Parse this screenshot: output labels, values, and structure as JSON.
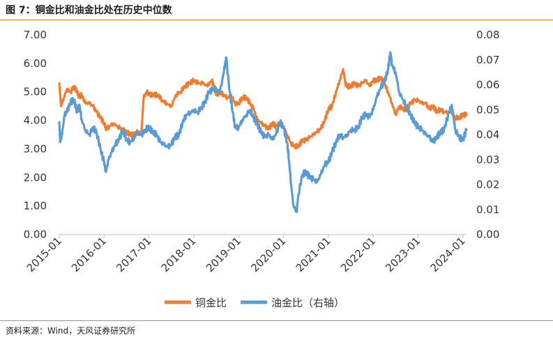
{
  "figure": {
    "title": "图 7：铜金比和油金比处在历史中位数",
    "source": "资料来源：Wind，天风证券研究所"
  },
  "chart_data": {
    "type": "line",
    "title": "铜金比和油金比处在历史中位数",
    "x_tick_labels": [
      "2015-01",
      "2016-01",
      "2017-01",
      "2018-01",
      "2019-01",
      "2020-01",
      "2021-01",
      "2022-01",
      "2023-01",
      "2024-01"
    ],
    "x_range": [
      2015.0,
      2024.08
    ],
    "y_left": {
      "range": [
        0,
        7
      ],
      "tick_labels": [
        "0.00",
        "1.00",
        "2.00",
        "3.00",
        "4.00",
        "5.00",
        "6.00",
        "7.00"
      ]
    },
    "y_right": {
      "range": [
        0,
        0.08
      ],
      "tick_labels": [
        "0.00",
        "0.01",
        "0.02",
        "0.03",
        "0.04",
        "0.05",
        "0.06",
        "0.07",
        "0.08"
      ]
    },
    "legend_position": "bottom-center",
    "series": [
      {
        "name": "铜金比",
        "axis": "left",
        "color": "#ED7D31",
        "points": [
          [
            2015.0,
            5.3
          ],
          [
            2015.04,
            4.5
          ],
          [
            2015.1,
            4.8
          ],
          [
            2015.17,
            5.1
          ],
          [
            2015.25,
            5.0
          ],
          [
            2015.33,
            5.2
          ],
          [
            2015.4,
            5.0
          ],
          [
            2015.45,
            4.8
          ],
          [
            2015.5,
            4.9
          ],
          [
            2015.58,
            4.6
          ],
          [
            2015.67,
            4.6
          ],
          [
            2015.75,
            4.5
          ],
          [
            2015.83,
            4.3
          ],
          [
            2015.92,
            4.1
          ],
          [
            2016.0,
            3.9
          ],
          [
            2016.05,
            3.7
          ],
          [
            2016.12,
            3.8
          ],
          [
            2016.2,
            3.9
          ],
          [
            2016.3,
            3.8
          ],
          [
            2016.4,
            3.7
          ],
          [
            2016.5,
            3.6
          ],
          [
            2016.58,
            3.5
          ],
          [
            2016.67,
            3.5
          ],
          [
            2016.75,
            3.6
          ],
          [
            2016.83,
            3.5
          ],
          [
            2016.88,
            4.8
          ],
          [
            2016.95,
            5.0
          ],
          [
            2017.0,
            4.9
          ],
          [
            2017.1,
            4.9
          ],
          [
            2017.2,
            4.9
          ],
          [
            2017.3,
            4.7
          ],
          [
            2017.4,
            4.6
          ],
          [
            2017.5,
            4.5
          ],
          [
            2017.6,
            4.9
          ],
          [
            2017.7,
            5.0
          ],
          [
            2017.8,
            5.2
          ],
          [
            2017.9,
            5.3
          ],
          [
            2018.0,
            5.4
          ],
          [
            2018.1,
            5.3
          ],
          [
            2018.2,
            5.3
          ],
          [
            2018.3,
            5.2
          ],
          [
            2018.4,
            5.4
          ],
          [
            2018.45,
            5.2
          ],
          [
            2018.5,
            4.9
          ],
          [
            2018.58,
            5.0
          ],
          [
            2018.67,
            4.9
          ],
          [
            2018.75,
            4.8
          ],
          [
            2018.83,
            4.9
          ],
          [
            2018.92,
            4.6
          ],
          [
            2019.0,
            4.6
          ],
          [
            2019.08,
            4.8
          ],
          [
            2019.17,
            4.8
          ],
          [
            2019.25,
            4.6
          ],
          [
            2019.33,
            4.4
          ],
          [
            2019.42,
            4.0
          ],
          [
            2019.5,
            3.9
          ],
          [
            2019.58,
            3.8
          ],
          [
            2019.67,
            3.7
          ],
          [
            2019.75,
            3.9
          ],
          [
            2019.83,
            3.8
          ],
          [
            2019.92,
            3.9
          ],
          [
            2020.0,
            3.8
          ],
          [
            2020.08,
            3.5
          ],
          [
            2020.17,
            3.2
          ],
          [
            2020.25,
            3.1
          ],
          [
            2020.33,
            3.1
          ],
          [
            2020.42,
            3.3
          ],
          [
            2020.5,
            3.3
          ],
          [
            2020.58,
            3.4
          ],
          [
            2020.67,
            3.5
          ],
          [
            2020.75,
            3.6
          ],
          [
            2020.83,
            3.7
          ],
          [
            2020.92,
            4.0
          ],
          [
            2021.0,
            4.4
          ],
          [
            2021.08,
            4.5
          ],
          [
            2021.17,
            5.0
          ],
          [
            2021.25,
            5.4
          ],
          [
            2021.33,
            5.8
          ],
          [
            2021.38,
            5.3
          ],
          [
            2021.42,
            5.2
          ],
          [
            2021.5,
            5.2
          ],
          [
            2021.58,
            5.3
          ],
          [
            2021.67,
            5.2
          ],
          [
            2021.75,
            5.3
          ],
          [
            2021.83,
            5.4
          ],
          [
            2021.92,
            5.2
          ],
          [
            2022.0,
            5.4
          ],
          [
            2022.08,
            5.4
          ],
          [
            2022.17,
            5.5
          ],
          [
            2022.25,
            5.3
          ],
          [
            2022.33,
            5.0
          ],
          [
            2022.42,
            4.6
          ],
          [
            2022.5,
            4.2
          ],
          [
            2022.58,
            4.5
          ],
          [
            2022.67,
            4.4
          ],
          [
            2022.75,
            4.4
          ],
          [
            2022.83,
            4.6
          ],
          [
            2022.92,
            4.7
          ],
          [
            2023.0,
            4.7
          ],
          [
            2023.08,
            4.6
          ],
          [
            2023.17,
            4.6
          ],
          [
            2023.25,
            4.4
          ],
          [
            2023.33,
            4.5
          ],
          [
            2023.42,
            4.3
          ],
          [
            2023.5,
            4.4
          ],
          [
            2023.58,
            4.3
          ],
          [
            2023.67,
            4.3
          ],
          [
            2023.75,
            4.3
          ],
          [
            2023.83,
            4.1
          ],
          [
            2023.92,
            4.1
          ],
          [
            2024.0,
            4.2
          ],
          [
            2024.08,
            4.2
          ]
        ]
      },
      {
        "name": "油金比（右轴）",
        "axis": "right",
        "color": "#5B9BD5",
        "points": [
          [
            2015.0,
            0.045
          ],
          [
            2015.02,
            0.037
          ],
          [
            2015.06,
            0.04
          ],
          [
            2015.12,
            0.048
          ],
          [
            2015.17,
            0.049
          ],
          [
            2015.25,
            0.053
          ],
          [
            2015.33,
            0.054
          ],
          [
            2015.4,
            0.049
          ],
          [
            2015.45,
            0.052
          ],
          [
            2015.5,
            0.046
          ],
          [
            2015.58,
            0.042
          ],
          [
            2015.67,
            0.04
          ],
          [
            2015.75,
            0.043
          ],
          [
            2015.83,
            0.041
          ],
          [
            2015.92,
            0.034
          ],
          [
            2016.0,
            0.029
          ],
          [
            2016.04,
            0.025
          ],
          [
            2016.1,
            0.03
          ],
          [
            2016.17,
            0.033
          ],
          [
            2016.25,
            0.036
          ],
          [
            2016.33,
            0.038
          ],
          [
            2016.42,
            0.042
          ],
          [
            2016.5,
            0.038
          ],
          [
            2016.58,
            0.037
          ],
          [
            2016.67,
            0.039
          ],
          [
            2016.75,
            0.041
          ],
          [
            2016.83,
            0.04
          ],
          [
            2016.92,
            0.042
          ],
          [
            2017.0,
            0.043
          ],
          [
            2017.08,
            0.041
          ],
          [
            2017.17,
            0.04
          ],
          [
            2017.25,
            0.037
          ],
          [
            2017.33,
            0.036
          ],
          [
            2017.42,
            0.035
          ],
          [
            2017.5,
            0.036
          ],
          [
            2017.58,
            0.039
          ],
          [
            2017.67,
            0.04
          ],
          [
            2017.75,
            0.045
          ],
          [
            2017.83,
            0.048
          ],
          [
            2017.92,
            0.049
          ],
          [
            2018.0,
            0.05
          ],
          [
            2018.08,
            0.049
          ],
          [
            2018.17,
            0.051
          ],
          [
            2018.25,
            0.053
          ],
          [
            2018.33,
            0.057
          ],
          [
            2018.42,
            0.058
          ],
          [
            2018.5,
            0.058
          ],
          [
            2018.58,
            0.057
          ],
          [
            2018.67,
            0.065
          ],
          [
            2018.72,
            0.071
          ],
          [
            2018.8,
            0.057
          ],
          [
            2018.87,
            0.049
          ],
          [
            2018.92,
            0.043
          ],
          [
            2019.0,
            0.043
          ],
          [
            2019.08,
            0.046
          ],
          [
            2019.17,
            0.048
          ],
          [
            2019.25,
            0.05
          ],
          [
            2019.33,
            0.047
          ],
          [
            2019.42,
            0.044
          ],
          [
            2019.5,
            0.041
          ],
          [
            2019.58,
            0.039
          ],
          [
            2019.67,
            0.04
          ],
          [
            2019.75,
            0.038
          ],
          [
            2019.83,
            0.04
          ],
          [
            2019.92,
            0.045
          ],
          [
            2020.0,
            0.043
          ],
          [
            2020.08,
            0.037
          ],
          [
            2020.12,
            0.03
          ],
          [
            2020.17,
            0.02
          ],
          [
            2020.22,
            0.012
          ],
          [
            2020.29,
            0.009
          ],
          [
            2020.33,
            0.016
          ],
          [
            2020.42,
            0.024
          ],
          [
            2020.5,
            0.025
          ],
          [
            2020.58,
            0.023
          ],
          [
            2020.67,
            0.022
          ],
          [
            2020.75,
            0.021
          ],
          [
            2020.83,
            0.024
          ],
          [
            2020.92,
            0.028
          ],
          [
            2021.0,
            0.029
          ],
          [
            2021.08,
            0.033
          ],
          [
            2021.17,
            0.037
          ],
          [
            2021.25,
            0.04
          ],
          [
            2021.33,
            0.039
          ],
          [
            2021.42,
            0.04
          ],
          [
            2021.5,
            0.042
          ],
          [
            2021.58,
            0.042
          ],
          [
            2021.67,
            0.043
          ],
          [
            2021.75,
            0.047
          ],
          [
            2021.83,
            0.048
          ],
          [
            2021.92,
            0.047
          ],
          [
            2022.0,
            0.05
          ],
          [
            2022.08,
            0.055
          ],
          [
            2022.17,
            0.059
          ],
          [
            2022.25,
            0.061
          ],
          [
            2022.33,
            0.066
          ],
          [
            2022.38,
            0.073
          ],
          [
            2022.42,
            0.068
          ],
          [
            2022.5,
            0.065
          ],
          [
            2022.58,
            0.057
          ],
          [
            2022.67,
            0.054
          ],
          [
            2022.75,
            0.051
          ],
          [
            2022.83,
            0.048
          ],
          [
            2022.92,
            0.045
          ],
          [
            2023.0,
            0.043
          ],
          [
            2023.08,
            0.042
          ],
          [
            2023.17,
            0.04
          ],
          [
            2023.25,
            0.039
          ],
          [
            2023.33,
            0.037
          ],
          [
            2023.42,
            0.039
          ],
          [
            2023.5,
            0.041
          ],
          [
            2023.58,
            0.042
          ],
          [
            2023.67,
            0.048
          ],
          [
            2023.75,
            0.052
          ],
          [
            2023.8,
            0.046
          ],
          [
            2023.83,
            0.042
          ],
          [
            2023.92,
            0.039
          ],
          [
            2024.0,
            0.038
          ],
          [
            2024.08,
            0.042
          ]
        ]
      }
    ]
  }
}
